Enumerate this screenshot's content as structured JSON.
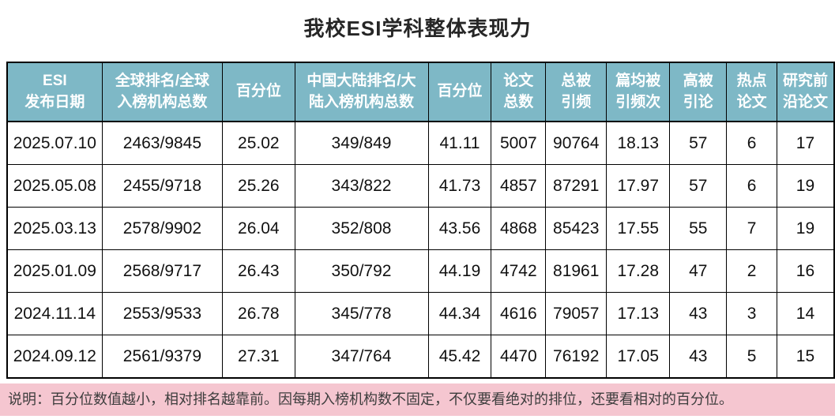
{
  "title": "我校ESI学科整体表现力",
  "table": {
    "headers": [
      "ESI\n发布日期",
      "全球排名/全球\n入榜机构总数",
      "百分位",
      "中国大陆排名/大\n陆入榜机构总数",
      "百分位",
      "论文\n总数",
      "总被\n引频",
      "篇均被\n引频次",
      "高被\n引论",
      "热点\n论文",
      "研究前\n沿论文"
    ],
    "rows": [
      [
        "2025.07.10",
        "2463/9845",
        "25.02",
        "349/849",
        "41.11",
        "5007",
        "90764",
        "18.13",
        "57",
        "6",
        "17"
      ],
      [
        "2025.05.08",
        "2455/9718",
        "25.26",
        "343/822",
        "41.73",
        "4857",
        "87291",
        "17.97",
        "57",
        "6",
        "19"
      ],
      [
        "2025.03.13",
        "2578/9902",
        "26.04",
        "352/808",
        "43.56",
        "4868",
        "85423",
        "17.55",
        "55",
        "7",
        "19"
      ],
      [
        "2025.01.09",
        "2568/9717",
        "26.43",
        "350/792",
        "44.19",
        "4742",
        "81961",
        "17.28",
        "47",
        "2",
        "16"
      ],
      [
        "2024.11.14",
        "2553/9533",
        "26.78",
        "345/778",
        "44.34",
        "4616",
        "79057",
        "17.13",
        "43",
        "3",
        "14"
      ],
      [
        "2024.09.12",
        "2561/9379",
        "27.31",
        "347/764",
        "45.42",
        "4470",
        "76192",
        "17.05",
        "43",
        "5",
        "15"
      ]
    ]
  },
  "note": "说明：百分位数值越小，相对排名越靠前。因每期入榜机构数不固定，不仅要看绝对的排位，还要看相对的百分位。",
  "colors": {
    "header_bg": "#7EB8C6",
    "global_percentile_bg": "#00B0F0",
    "cn_percentile_bg": "#C9F3F4",
    "note_bg": "#F5C6D0",
    "border": "#000000"
  }
}
